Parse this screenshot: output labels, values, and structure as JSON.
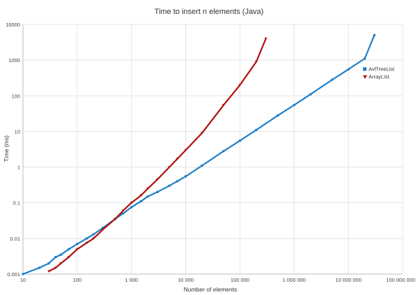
{
  "chart_data": {
    "type": "scatter",
    "title": "Time to insert n elements (Java)",
    "xlabel": "Number of elements",
    "ylabel": "Time (ms)",
    "x_scale": "log",
    "y_scale": "log",
    "xlim": [
      10,
      100000000
    ],
    "ylim": [
      0.001,
      10000
    ],
    "x_ticks": [
      10,
      100,
      1000,
      10000,
      100000,
      1000000,
      10000000,
      100000000
    ],
    "x_tick_labels": [
      "10",
      "100",
      "1 000",
      "10 000",
      "100 000",
      "1 000 000",
      "10 000 000",
      "100 000 000"
    ],
    "y_ticks": [
      0.001,
      0.01,
      0.1,
      1,
      10,
      100,
      1000,
      10000
    ],
    "y_tick_labels": [
      "0.001",
      "0.01",
      "0.1",
      "1",
      "10",
      "100",
      "1000",
      "10000"
    ],
    "grid": true,
    "legend_position": "right",
    "series": [
      {
        "name": "AvlTreeList",
        "color": "#1f7fc8",
        "marker": "square",
        "x": [
          10,
          20,
          30,
          40,
          50,
          70,
          100,
          150,
          200,
          300,
          500,
          700,
          1000,
          1500,
          2000,
          3000,
          5000,
          7000,
          10000,
          20000,
          50000,
          100000,
          200000,
          500000,
          1000000,
          2000000,
          5000000,
          10000000,
          20000000,
          30000000
        ],
        "y": [
          0.001,
          0.0015,
          0.002,
          0.003,
          0.0035,
          0.005,
          0.007,
          0.01,
          0.013,
          0.02,
          0.035,
          0.05,
          0.075,
          0.11,
          0.15,
          0.2,
          0.3,
          0.4,
          0.55,
          1.1,
          2.8,
          5.5,
          11,
          28,
          55,
          110,
          280,
          550,
          1100,
          5000
        ]
      },
      {
        "name": "ArrayList",
        "color": "#b01010",
        "marker": "triangle-down",
        "x": [
          30,
          40,
          50,
          70,
          100,
          150,
          200,
          300,
          500,
          700,
          1000,
          1500,
          2000,
          3000,
          5000,
          7000,
          10000,
          20000,
          50000,
          100000,
          200000,
          300000
        ],
        "y": [
          0.0012,
          0.0015,
          0.002,
          0.003,
          0.005,
          0.0075,
          0.01,
          0.018,
          0.035,
          0.06,
          0.1,
          0.16,
          0.25,
          0.45,
          1,
          1.7,
          3,
          9,
          55,
          200,
          900,
          4000
        ]
      }
    ]
  }
}
